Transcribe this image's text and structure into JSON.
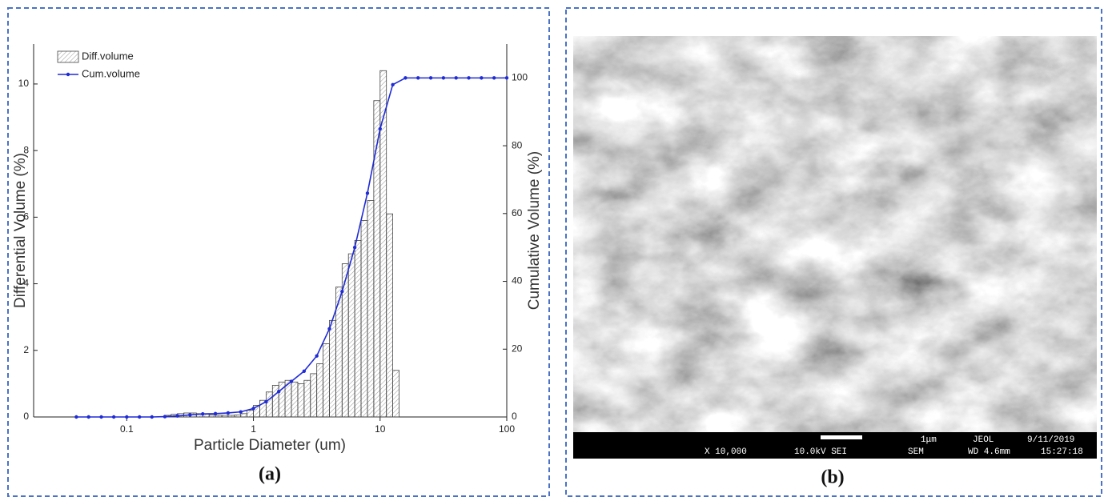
{
  "chart_data": {
    "type": "histogram",
    "xlabel": "Particle Diameter (um)",
    "ylabel": "Differential Volume (%)",
    "y2label": "Cumulative Volume (%)",
    "log_x": true,
    "legend": "upper left",
    "xlim": [
      0.0184,
      100
    ],
    "xticks": [
      0.1,
      1,
      10,
      100
    ],
    "ylim": [
      0,
      11.2
    ],
    "yticks": [
      0,
      2,
      4,
      6,
      8,
      10
    ],
    "y2lim": [
      0,
      110
    ],
    "y2ticks": [
      0,
      20,
      40,
      60,
      80,
      100
    ],
    "bins": [
      0.2,
      0.224,
      0.251,
      0.282,
      0.316,
      0.355,
      0.398,
      0.447,
      0.501,
      0.562,
      0.631,
      0.708,
      0.794,
      0.891,
      1,
      1.122,
      1.259,
      1.413,
      1.585,
      1.778,
      1.995,
      2.239,
      2.512,
      2.818,
      3.162,
      3.548,
      3.981,
      4.467,
      5.012,
      5.623,
      6.31,
      7.079,
      7.943,
      8.913,
      10,
      11.22,
      12.59,
      14.13
    ],
    "series": [
      {
        "name": "Diff.volume",
        "type": "histogram",
        "color": "#444444",
        "values": [
          0.05,
          0.08,
          0.1,
          0.12,
          0.12,
          0.1,
          0.08,
          0.06,
          0.05,
          0.05,
          0.05,
          0.06,
          0.1,
          0.2,
          0.35,
          0.5,
          0.75,
          0.95,
          1.05,
          1.1,
          1.05,
          1.0,
          1.1,
          1.3,
          1.6,
          2.2,
          2.9,
          3.9,
          4.6,
          4.9,
          5.3,
          5.9,
          6.5,
          9.5,
          10.4,
          6.1,
          1.4
        ]
      },
      {
        "name": "Cum.volume",
        "type": "line",
        "axis": "y2",
        "color": "#1f2bd6",
        "x": [
          0.04,
          0.05,
          0.063,
          0.079,
          0.1,
          0.126,
          0.158,
          0.2,
          0.251,
          0.316,
          0.398,
          0.501,
          0.631,
          0.794,
          1,
          1.259,
          1.585,
          1.995,
          2.512,
          3.162,
          3.981,
          5.012,
          6.31,
          7.943,
          10,
          12.59,
          15.85,
          19.95,
          25.12,
          31.62,
          39.81,
          50.12,
          63.1,
          79.43,
          100
        ],
        "values": [
          0,
          0,
          0,
          0,
          0,
          0,
          0,
          0.1,
          0.3,
          0.6,
          0.9,
          1,
          1.2,
          1.5,
          2.5,
          4.5,
          7.5,
          10.5,
          13.5,
          18,
          26,
          37,
          50,
          66,
          85,
          98,
          100,
          100,
          100,
          100,
          100,
          100,
          100,
          100,
          100
        ]
      }
    ]
  },
  "panels": [
    "(a)",
    "(b)"
  ],
  "sem_info": {
    "scale": "1μm",
    "maker": "JEOL",
    "date": "9/11/2019",
    "magnification": "X 10,000",
    "voltage": "10.0kV SEI",
    "mode": "SEM",
    "wd": "WD 4.6mm",
    "time": "15:27:18"
  }
}
